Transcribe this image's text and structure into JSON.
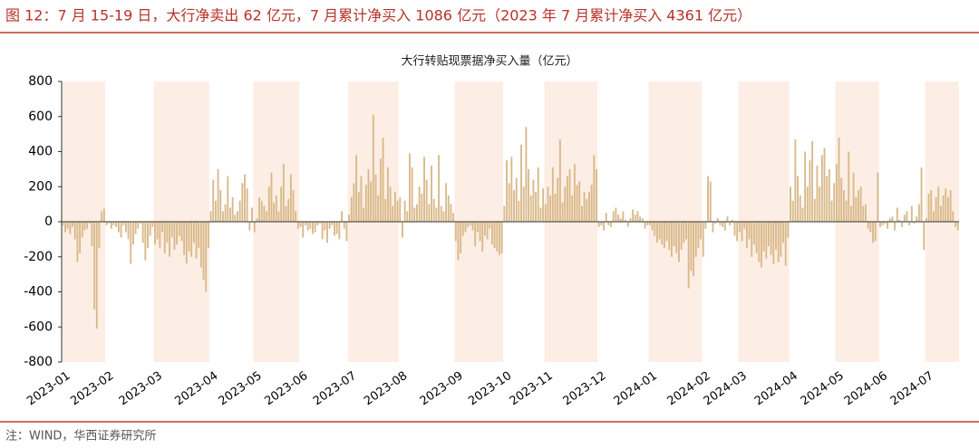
{
  "chart_data": {
    "type": "bar",
    "heading": "图 12：7 月 15-19 日，大行净卖出 62 亿元，7 月累计净买入 1086 亿元（2023 年 7 月累计净买入 4361 亿元）",
    "title": "大行转贴现票据净买入量（亿元）",
    "source": "注：WIND，华西证券研究所",
    "color": "#d9b98a",
    "band_color": "#fdeee5",
    "ylim": [
      -800,
      800
    ],
    "yticks": [
      800,
      600,
      400,
      200,
      0,
      -200,
      -400,
      -600,
      -800
    ],
    "categories": [
      "2023-01",
      "2023-02",
      "2023-03",
      "2023-04",
      "2023-05",
      "2023-06",
      "2023-07",
      "2023-08",
      "2023-09",
      "2023-10",
      "2023-11",
      "2023-12",
      "2024-01",
      "2024-02",
      "2024-03",
      "2024-04",
      "2024-05",
      "2024-06",
      "2024-07"
    ],
    "values": [
      [
        -20,
        -60,
        -40,
        -70,
        -30,
        -100,
        -230,
        -180,
        -90,
        -50,
        -40,
        -10,
        -140,
        -500,
        -610,
        -150,
        60,
        75
      ],
      [
        -20,
        -10,
        -40,
        -20,
        -30,
        -60,
        -90,
        -20,
        -60,
        -100,
        -240,
        -130,
        -70,
        -40,
        -10,
        -120,
        -220,
        -150,
        -80,
        -30
      ],
      [
        -130,
        -100,
        -150,
        -60,
        -180,
        -120,
        -200,
        -90,
        -160,
        -130,
        -80,
        -110,
        -190,
        -240,
        -170,
        -200,
        -120,
        -210,
        -150,
        -260,
        -330,
        -400,
        -150
      ],
      [
        60,
        240,
        120,
        300,
        180,
        60,
        100,
        260,
        80,
        140,
        40,
        60,
        120,
        220,
        270,
        190,
        -50,
        80
      ],
      [
        -60,
        20,
        140,
        120,
        90,
        60,
        200,
        280,
        110,
        150,
        60,
        200,
        330,
        90,
        130,
        270,
        180,
        60,
        -40
      ],
      [
        -30,
        -90,
        -20,
        -50,
        -40,
        -70,
        -60,
        -20,
        -10,
        -100,
        -50,
        -120,
        -40,
        -20,
        -80,
        -70,
        -100,
        60,
        -40,
        -110
      ],
      [
        40,
        140,
        220,
        380,
        170,
        260,
        80,
        210,
        300,
        230,
        610,
        270,
        150,
        360,
        480,
        130,
        310,
        200,
        90,
        170,
        120
      ],
      [
        140,
        -90,
        120,
        60,
        390,
        310,
        80,
        100,
        200,
        160,
        370,
        240,
        100,
        320,
        130,
        80,
        380,
        90,
        60,
        220,
        150,
        100,
        50
      ],
      [
        -110,
        -220,
        -180,
        -80,
        -60,
        -30,
        -20,
        -50,
        -140,
        -60,
        -110,
        -170,
        -80,
        -100,
        -40,
        -130,
        -150,
        -170,
        -190,
        -180
      ],
      [
        90,
        350,
        220,
        370,
        180,
        250,
        120,
        440,
        200,
        540,
        300,
        150,
        240,
        170,
        310,
        80,
        190
      ],
      [
        100,
        200,
        150,
        310,
        160,
        250,
        470,
        110,
        200,
        260,
        300,
        150,
        330,
        210,
        230,
        90,
        170,
        130,
        170,
        210,
        380,
        300
      ],
      [
        -30,
        -20,
        -50,
        50,
        -20,
        -30,
        60,
        80,
        40,
        20,
        60,
        10,
        -30,
        20,
        70,
        40,
        60,
        30,
        20,
        -40,
        -20
      ],
      [
        -20,
        -50,
        -80,
        -120,
        -100,
        -130,
        -150,
        -110,
        -160,
        -200,
        -140,
        -180,
        -230,
        -160,
        -120,
        -100,
        -380,
        -280,
        -310,
        -200,
        -150,
        -100
      ],
      [
        -200,
        -40,
        260,
        230,
        -60,
        -10,
        20,
        -20,
        -30,
        -50,
        30,
        -20,
        10,
        -80,
        -110
      ],
      [
        -60,
        -110,
        -40,
        -150,
        -100,
        -200,
        -130,
        -180,
        -230,
        -260,
        -170,
        -210,
        -140,
        -190,
        -240,
        -160,
        -230,
        -200,
        -120,
        -250,
        -90
      ],
      [
        200,
        120,
        470,
        260,
        150,
        80,
        400,
        200,
        350,
        460,
        130,
        320,
        200,
        380,
        420,
        260,
        300,
        120,
        220
      ],
      [
        330,
        480,
        250,
        180,
        120,
        400,
        90,
        280,
        140,
        180,
        200,
        90,
        100,
        -40,
        -60,
        -120,
        -110,
        280
      ],
      [
        -30,
        -20,
        -10,
        -40,
        20,
        30,
        -50,
        80,
        10,
        -30,
        40,
        60,
        -20,
        90,
        -10,
        30,
        100,
        310,
        -160
      ],
      [
        20,
        160,
        180,
        60,
        140,
        200,
        90,
        150,
        190,
        140,
        180,
        60,
        -30,
        -50
      ]
    ]
  }
}
